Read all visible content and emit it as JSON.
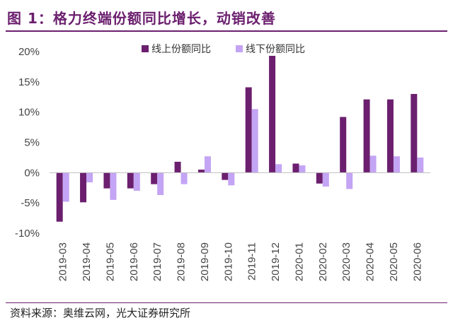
{
  "figure": {
    "title": "图 1：格力终端份额同比增长，动销改善",
    "source": "资料来源：奥维云网，光大证券研究所"
  },
  "colors": {
    "title": "#6b1f6e",
    "online": "#6b1f6e",
    "offline": "#c4a4f4"
  },
  "chart_data": {
    "type": "bar",
    "categories": [
      "2019-03",
      "2019-04",
      "2019-05",
      "2019-06",
      "2019-07",
      "2019-08",
      "2019-09",
      "2019-10",
      "2019-11",
      "2019-12",
      "2020-01",
      "2020-02",
      "2020-03",
      "2020-04",
      "2020-05",
      "2020-06"
    ],
    "series": [
      {
        "name": "线上份额同比",
        "values": [
          -8.1,
          -4.9,
          -2.6,
          -2.6,
          -1.9,
          1.8,
          0.5,
          -1.2,
          14.1,
          19.3,
          1.5,
          -1.8,
          9.2,
          12.1,
          12.1,
          13.0
        ]
      },
      {
        "name": "线下份额同比",
        "values": [
          -4.8,
          -1.6,
          -4.5,
          -3.0,
          -3.7,
          -1.9,
          2.7,
          -2.1,
          10.5,
          1.4,
          1.2,
          -2.3,
          -2.7,
          2.8,
          2.7,
          2.5
        ]
      }
    ],
    "yticks": [
      "20%",
      "15%",
      "10%",
      "5%",
      "0%",
      "-5%",
      "-10%"
    ],
    "ylim": [
      -10,
      20
    ],
    "unit": "%",
    "grid": false,
    "legend_position": "top"
  }
}
